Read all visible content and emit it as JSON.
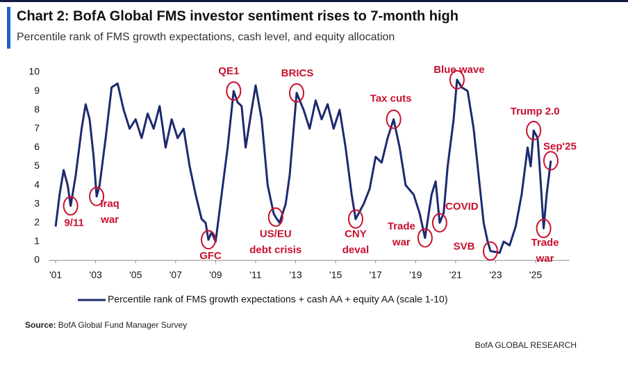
{
  "chart_data": {
    "type": "line",
    "title": "Chart 2: BofA Global FMS investor sentiment rises to 7-month high",
    "subtitle": "Percentile rank of FMS growth expectations, cash level, and equity allocation",
    "x": [
      2001.0,
      2001.2,
      2001.4,
      2001.6,
      2001.75,
      2002.0,
      2002.3,
      2002.5,
      2002.7,
      2002.9,
      2003.05,
      2003.2,
      2003.5,
      2003.8,
      2004.1,
      2004.4,
      2004.7,
      2005.0,
      2005.3,
      2005.6,
      2005.9,
      2006.2,
      2006.5,
      2006.8,
      2007.1,
      2007.4,
      2007.7,
      2008.0,
      2008.3,
      2008.5,
      2008.64,
      2008.8,
      2009.0,
      2009.3,
      2009.6,
      2009.9,
      2010.1,
      2010.3,
      2010.5,
      2010.8,
      2011.0,
      2011.3,
      2011.6,
      2011.9,
      2012.0,
      2012.2,
      2012.5,
      2012.7,
      2012.9,
      2013.05,
      2013.4,
      2013.7,
      2014.0,
      2014.3,
      2014.6,
      2014.9,
      2015.2,
      2015.5,
      2015.8,
      2016.0,
      2016.4,
      2016.7,
      2017.0,
      2017.3,
      2017.6,
      2017.9,
      2018.2,
      2018.5,
      2018.9,
      2019.2,
      2019.47,
      2019.8,
      2020.0,
      2020.2,
      2020.4,
      2020.6,
      2020.9,
      2021.07,
      2021.3,
      2021.6,
      2021.9,
      2022.1,
      2022.4,
      2022.6,
      2022.74,
      2023.2,
      2023.4,
      2023.7,
      2024.0,
      2024.3,
      2024.6,
      2024.75,
      2024.9,
      2025.1,
      2025.2,
      2025.4,
      2025.55,
      2025.76
    ],
    "series": [
      {
        "name": "Percentile rank of FMS growth expectations + cash AA + equity AA (scale 1-10)",
        "color": "#1c2a6e",
        "values": [
          1.8,
          3.5,
          4.8,
          4.0,
          2.9,
          4.5,
          7.0,
          8.3,
          7.5,
          5.5,
          3.4,
          4.0,
          6.5,
          9.2,
          9.4,
          8.0,
          7.0,
          7.5,
          6.5,
          7.8,
          7.0,
          8.2,
          6.0,
          7.5,
          6.5,
          7.0,
          5.0,
          3.5,
          2.2,
          2.0,
          1.1,
          1.5,
          1.0,
          3.5,
          6.0,
          9.0,
          8.4,
          8.2,
          6.0,
          8.0,
          9.3,
          7.5,
          4.0,
          2.5,
          2.3,
          2.0,
          3.0,
          4.5,
          7.0,
          8.9,
          8.0,
          7.0,
          8.5,
          7.5,
          8.3,
          7.0,
          8.0,
          6.0,
          3.5,
          2.2,
          3.0,
          3.8,
          5.5,
          5.2,
          6.5,
          7.5,
          6.0,
          4.0,
          3.5,
          2.5,
          1.2,
          3.5,
          4.2,
          2.0,
          2.5,
          5.0,
          7.5,
          9.6,
          9.2,
          9.0,
          7.0,
          5.0,
          2.0,
          1.0,
          0.5,
          0.4,
          1.0,
          0.8,
          1.8,
          3.5,
          6.0,
          5.0,
          6.9,
          6.5,
          5.0,
          1.7,
          3.5,
          5.3
        ]
      }
    ],
    "xlim": [
      2000.65,
      2026.7
    ],
    "xticks": [
      {
        "value": 2001,
        "label": "'01"
      },
      {
        "value": 2003,
        "label": "'03"
      },
      {
        "value": 2005,
        "label": "'05"
      },
      {
        "value": 2007,
        "label": "'07"
      },
      {
        "value": 2009,
        "label": "'09"
      },
      {
        "value": 2011,
        "label": "'11"
      },
      {
        "value": 2013,
        "label": "'13"
      },
      {
        "value": 2015,
        "label": "'15"
      },
      {
        "value": 2017,
        "label": "'17"
      },
      {
        "value": 2019,
        "label": "'19"
      },
      {
        "value": 2021,
        "label": "'21"
      },
      {
        "value": 2023,
        "label": "'23"
      },
      {
        "value": 2025,
        "label": "'25"
      }
    ],
    "ylim": [
      0,
      10
    ],
    "yticks": [
      0,
      1,
      2,
      3,
      4,
      5,
      6,
      7,
      8,
      9,
      10
    ],
    "grid": false,
    "annotation_color": "#c8102e",
    "annotations": [
      {
        "text": [
          "9/11"
        ],
        "x": 2001.75,
        "y": 2.9
      },
      {
        "text": [
          "Iraq",
          "war"
        ],
        "x": 2003.05,
        "y": 3.4
      },
      {
        "text": [
          "GFC"
        ],
        "x": 2008.64,
        "y": 1.1
      },
      {
        "text": [
          "QE1"
        ],
        "x": 2009.9,
        "y": 9.0
      },
      {
        "text": [
          "US/EU",
          "debt crisis"
        ],
        "x": 2012.0,
        "y": 2.3
      },
      {
        "text": [
          "BRICS"
        ],
        "x": 2013.05,
        "y": 8.9
      },
      {
        "text": [
          "CNY",
          "deval"
        ],
        "x": 2016.0,
        "y": 2.2
      },
      {
        "text": [
          "Tax cuts"
        ],
        "x": 2017.9,
        "y": 7.5
      },
      {
        "text": [
          "Trade",
          "war"
        ],
        "x": 2019.47,
        "y": 1.2
      },
      {
        "text": [
          "COVID"
        ],
        "x": 2020.2,
        "y": 2.0
      },
      {
        "text": [
          "Blue wave"
        ],
        "x": 2021.07,
        "y": 9.6
      },
      {
        "text": [
          "SVB"
        ],
        "x": 2022.74,
        "y": 0.5
      },
      {
        "text": [
          "Trump 2.0"
        ],
        "x": 2024.9,
        "y": 6.9
      },
      {
        "text": [
          "Sep'25"
        ],
        "x": 2025.76,
        "y": 5.3
      },
      {
        "text": [
          "Trade",
          "war"
        ],
        "x": 2025.4,
        "y": 1.7
      }
    ]
  },
  "source_label": "Source:",
  "source": "BofA Global Fund Manager Survey",
  "footer": "BofA GLOBAL RESEARCH"
}
